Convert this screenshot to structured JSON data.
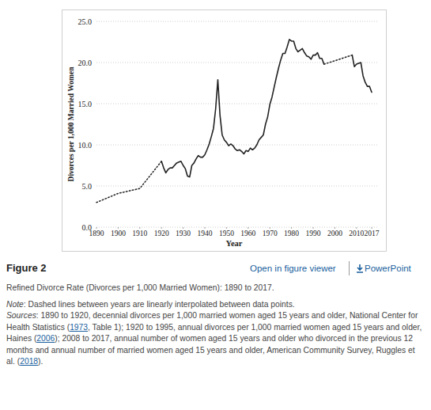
{
  "chart_data": {
    "type": "line",
    "x_label": "Year",
    "y_label": "Divorces per 1,000 Married Women",
    "x": [
      1890,
      1900,
      1910,
      1920,
      1921,
      1922,
      1923,
      1924,
      1925,
      1926,
      1927,
      1928,
      1929,
      1930,
      1931,
      1932,
      1933,
      1934,
      1935,
      1936,
      1937,
      1938,
      1939,
      1940,
      1941,
      1942,
      1943,
      1944,
      1945,
      1946,
      1947,
      1948,
      1949,
      1950,
      1951,
      1952,
      1953,
      1954,
      1955,
      1956,
      1957,
      1958,
      1959,
      1960,
      1961,
      1962,
      1963,
      1964,
      1965,
      1966,
      1967,
      1968,
      1969,
      1970,
      1971,
      1972,
      1973,
      1974,
      1975,
      1976,
      1977,
      1978,
      1979,
      1980,
      1981,
      1982,
      1983,
      1984,
      1985,
      1986,
      1987,
      1988,
      1989,
      1990,
      1991,
      1992,
      1993,
      1994,
      1995,
      2008,
      2009,
      2010,
      2011,
      2012,
      2013,
      2014,
      2015,
      2016,
      2017
    ],
    "series": [
      {
        "color": "#222222",
        "line_style": "dotted",
        "values": [
          3.0,
          4.1,
          4.7,
          8.0,
          null,
          null,
          null,
          null,
          null,
          null,
          null,
          null,
          null,
          null,
          null,
          null,
          null,
          null,
          null,
          null,
          null,
          null,
          null,
          null,
          null,
          null,
          null,
          null,
          null,
          null,
          null,
          null,
          null,
          null,
          null,
          null,
          null,
          null,
          null,
          null,
          null,
          null,
          null,
          null,
          null,
          null,
          null,
          null,
          null,
          null,
          null,
          null,
          null,
          null,
          null,
          null,
          null,
          null,
          null,
          null,
          null,
          null,
          null,
          null,
          null,
          null,
          null,
          null,
          null,
          null,
          null,
          null,
          null,
          null,
          null,
          null,
          null,
          null,
          19.8,
          20.9,
          null,
          null,
          null,
          null,
          null,
          null,
          null,
          null,
          null
        ]
      },
      {
        "color": "#222222",
        "line_style": "solid",
        "values": [
          null,
          null,
          null,
          8.0,
          7.2,
          6.6,
          7.0,
          7.2,
          7.2,
          7.5,
          7.8,
          7.9,
          8.0,
          7.5,
          7.1,
          6.2,
          6.1,
          7.5,
          7.8,
          8.3,
          8.7,
          8.5,
          8.5,
          8.8,
          9.4,
          10.1,
          11.0,
          12.0,
          14.4,
          17.9,
          13.6,
          11.2,
          10.6,
          10.3,
          9.9,
          10.1,
          9.9,
          9.5,
          9.3,
          9.4,
          9.2,
          8.9,
          9.3,
          9.2,
          9.6,
          9.4,
          9.6,
          10.0,
          10.6,
          10.9,
          11.2,
          12.5,
          13.4,
          14.9,
          15.8,
          17.0,
          18.2,
          19.3,
          20.3,
          21.1,
          21.1,
          21.9,
          22.8,
          22.6,
          22.6,
          21.7,
          21.3,
          21.5,
          21.7,
          21.2,
          20.8,
          20.7,
          20.4,
          20.9,
          20.9,
          21.2,
          20.5,
          20.5,
          19.8,
          null,
          null,
          null,
          null,
          null,
          null,
          null,
          null,
          null,
          null
        ]
      },
      {
        "color": "#222222",
        "line_style": "solid",
        "values": [
          null,
          null,
          null,
          null,
          null,
          null,
          null,
          null,
          null,
          null,
          null,
          null,
          null,
          null,
          null,
          null,
          null,
          null,
          null,
          null,
          null,
          null,
          null,
          null,
          null,
          null,
          null,
          null,
          null,
          null,
          null,
          null,
          null,
          null,
          null,
          null,
          null,
          null,
          null,
          null,
          null,
          null,
          null,
          null,
          null,
          null,
          null,
          null,
          null,
          null,
          null,
          null,
          null,
          null,
          null,
          null,
          null,
          null,
          null,
          null,
          null,
          null,
          null,
          null,
          null,
          null,
          null,
          null,
          null,
          null,
          null,
          null,
          null,
          null,
          null,
          null,
          null,
          null,
          null,
          20.9,
          19.5,
          19.8,
          19.9,
          20.0,
          18.4,
          17.6,
          17.1,
          17.1,
          16.4
        ]
      }
    ],
    "xlim": [
      1890,
      2017
    ],
    "xticks": [
      1890,
      1900,
      1910,
      1920,
      1930,
      1940,
      1950,
      1960,
      1970,
      1980,
      1990,
      2000,
      2010,
      2017
    ],
    "ylim": [
      0,
      25
    ],
    "yticks": [
      {
        "value": 0,
        "label": "0.0"
      },
      {
        "value": 5,
        "label": "5.0"
      },
      {
        "value": 10,
        "label": "10.0"
      },
      {
        "value": 15,
        "label": "15.0"
      },
      {
        "value": 20,
        "label": "20.0"
      },
      {
        "value": 25,
        "label": "25.0"
      }
    ],
    "grid": true
  },
  "caption": {
    "label": "Figure 2",
    "viewer_link": "Open in figure viewer",
    "download_link": "PowerPoint",
    "title": "Refined Divorce Rate (Divorces per 1,000 Married Women): 1890 to 2017.",
    "note_label": "Note",
    "note": ": Dashed lines between years are linearly interpolated between data points.",
    "sources_label": "Sources",
    "sources_parts": [
      ": 1890 to 1920, decennial divorces per 1,000 married women aged 15 years and older, National Center for Health Statistics (",
      "1973",
      ", Table 1); 1920 to 1995, annual divorces per 1,000 married women aged 15 years and older, Haines (",
      "2006",
      "); 2008 to 2017, annual number of women aged 15 years and older who divorced in the previous 12 months and annual number of married women aged 15 years and older, American Community Survey, Ruggles et al. (",
      "2018",
      ")."
    ]
  }
}
